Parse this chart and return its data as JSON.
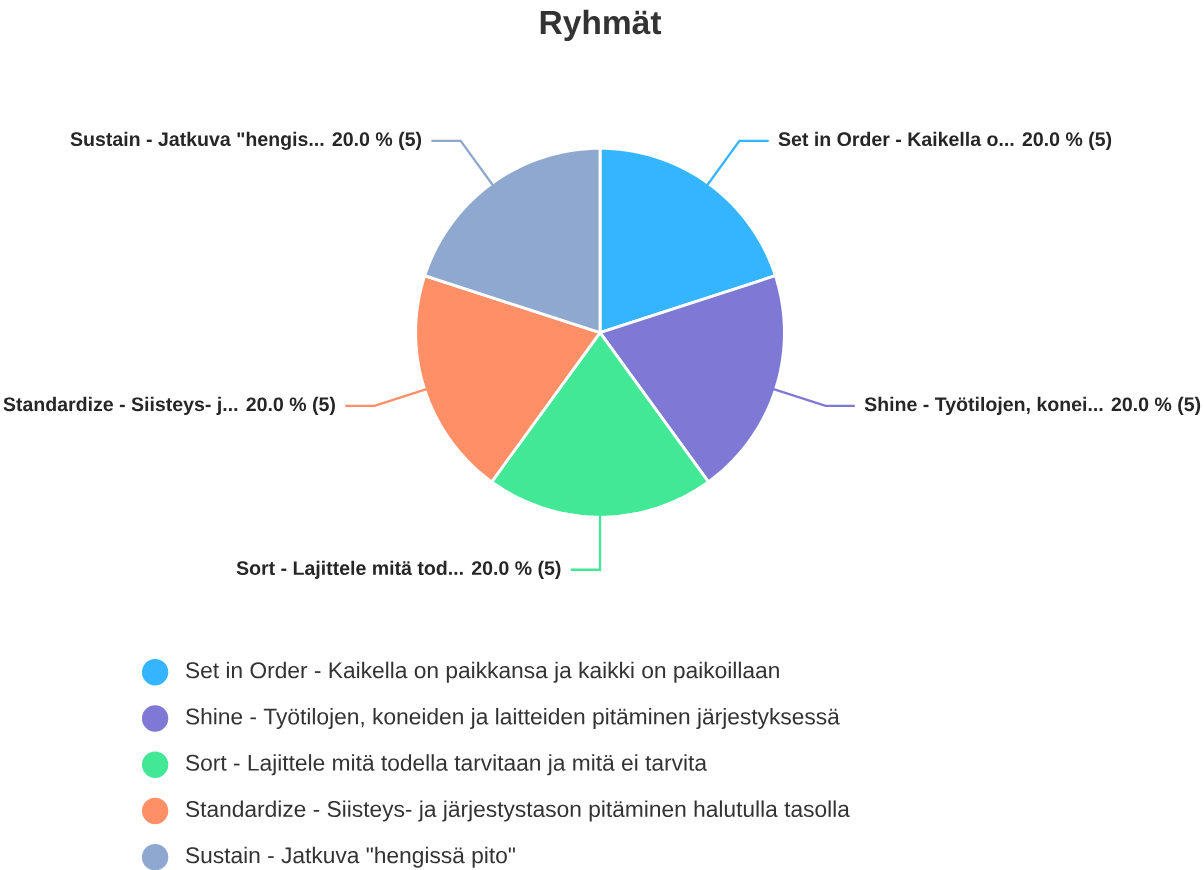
{
  "chart_data": {
    "type": "pie",
    "title": "Ryhmät",
    "categories": [
      "Set in Order - Kaikella on paikkansa ja kaikki on paikoillaan",
      "Shine - Työtilojen, koneiden ja laitteiden pitäminen järjestyksessä",
      "Sort - Lajittele mitä todella tarvitaan ja mitä ei tarvita",
      "Standardize - Siisteys- ja järjestystason pitäminen halutulla tasolla",
      "Sustain - Jatkuva \"hengissä pito\""
    ],
    "values": [
      5,
      5,
      5,
      5,
      5
    ],
    "colors": [
      "#35b5ff",
      "#7e79d4",
      "#42e896",
      "#ff8f66",
      "#8fa8cf"
    ],
    "value_labels": [
      "Set in Order - Kaikella o... 20.0 % (5)",
      "Shine - Työtilojen, konei... 20.0 % (5)",
      "Sort - Lajittele mitä tod... 20.0 % (5)",
      "Standardize - Siisteys- j... 20.0 % (5)",
      "Sustain - Jatkuva \"hengis... 20.0 % (5)"
    ],
    "legend": "bottom"
  }
}
